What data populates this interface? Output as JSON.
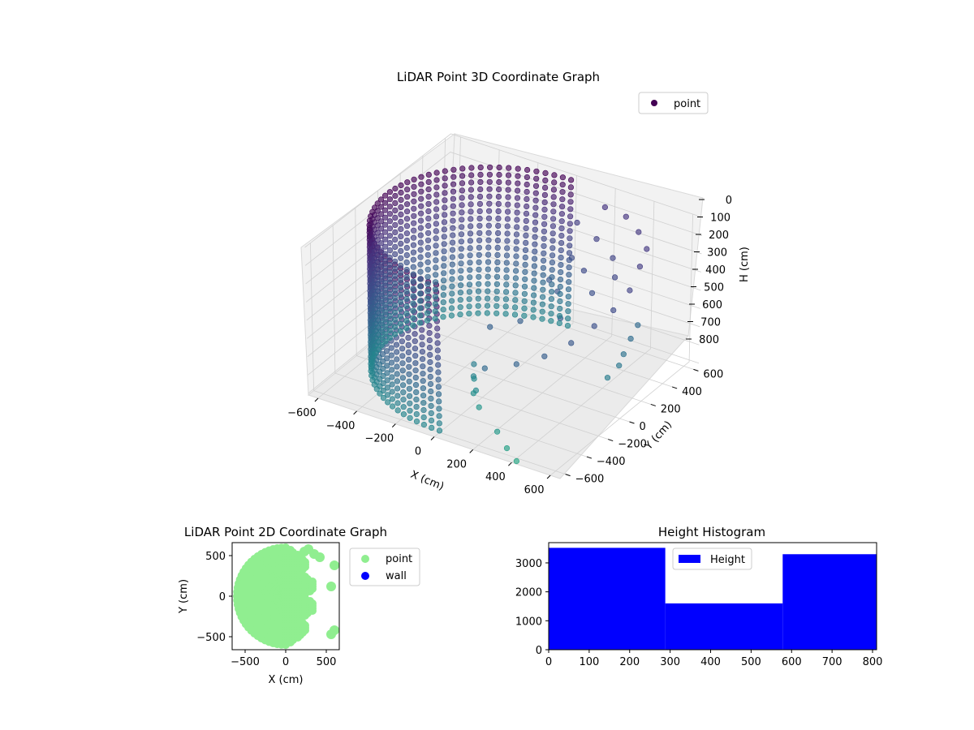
{
  "chart_data": [
    {
      "type": "scatter",
      "projection": "3d",
      "title": "LiDAR Point 3D Coordinate Graph",
      "xlabel": "X (cm)",
      "ylabel": "Y (cm)",
      "zlabel": "H (cm)",
      "xticks": [
        "−600",
        "−400",
        "−200",
        "0",
        "200",
        "400",
        "600"
      ],
      "yticks": [
        "−600",
        "−400",
        "−200",
        "0",
        "200",
        "400",
        "600"
      ],
      "zticks": [
        "0",
        "100",
        "200",
        "300",
        "400",
        "500",
        "600",
        "700",
        "800"
      ],
      "xlim": [
        -650,
        650
      ],
      "ylim": [
        -650,
        650
      ],
      "zlim": [
        0,
        810
      ],
      "z_inverted": true,
      "colormap": "viridis",
      "legend": {
        "label": "point",
        "location": "top-right",
        "marker_color": "#440154"
      },
      "series": [
        {
          "name": "point",
          "description_shape": "half cylinder wall of radius ~600 cm on the negative-X side, columns of points from H 0 to ~800, plus sparse scattered points on the positive-X side",
          "wall_radius": 600,
          "wall_angle_range_deg": [
            90,
            270
          ],
          "height_range": [
            0,
            800
          ],
          "sparse_points": [
            [
              200,
              560,
              60
            ],
            [
              320,
              540,
              60
            ],
            [
              420,
              480,
              80
            ],
            [
              520,
              380,
              90
            ],
            [
              560,
              250,
              110
            ],
            [
              600,
              90,
              150
            ],
            [
              590,
              -40,
              200
            ],
            [
              560,
              -160,
              240
            ],
            [
              520,
              -300,
              280
            ],
            [
              450,
              -420,
              320
            ],
            [
              350,
              -500,
              360
            ],
            [
              220,
              -560,
              400
            ],
            [
              120,
              450,
              120
            ],
            [
              250,
              400,
              140
            ],
            [
              380,
              320,
              160
            ],
            [
              460,
              200,
              180
            ],
            [
              300,
              200,
              200
            ],
            [
              180,
              300,
              220
            ],
            [
              400,
              100,
              240
            ],
            [
              250,
              50,
              260
            ],
            [
              150,
              150,
              280
            ],
            [
              350,
              -100,
              300
            ],
            [
              200,
              -200,
              320
            ],
            [
              100,
              -300,
              340
            ],
            [
              60,
              -380,
              520
            ],
            [
              80,
              -420,
              560
            ],
            [
              120,
              -470,
              600
            ],
            [
              60,
              -380,
              600
            ],
            [
              90,
              -440,
              640
            ],
            [
              140,
              -480,
              680
            ],
            [
              580,
              200,
              400
            ],
            [
              600,
              100,
              420
            ],
            [
              620,
              0,
              450
            ],
            [
              630,
              -60,
              480
            ],
            [
              610,
              -130,
              520
            ],
            [
              300,
              -600,
              700
            ],
            [
              360,
              -620,
              760
            ],
            [
              420,
              -640,
              800
            ]
          ]
        }
      ]
    },
    {
      "type": "scatter",
      "title": "LiDAR Point 2D Coordinate Graph",
      "xlabel": "X (cm)",
      "ylabel": "Y (cm)",
      "xticks": [
        "−500",
        "0",
        "500"
      ],
      "yticks": [
        "500",
        "0",
        "−500"
      ],
      "xlim": [
        -660,
        660
      ],
      "ylim": [
        -660,
        660
      ],
      "legend": {
        "location": "outside-right",
        "entries": [
          {
            "label": "point",
            "color": "#90ee90"
          },
          {
            "label": "wall",
            "color": "#0000ff"
          }
        ]
      },
      "series": [
        {
          "name": "point",
          "color": "#90ee90",
          "shape": "filled half-disc of radius ~600 on the negative-X side with ragged right edge"
        },
        {
          "name": "wall",
          "color": "#0000ff",
          "points": []
        }
      ]
    },
    {
      "type": "bar",
      "title": "Height Histogram",
      "xlabel": "",
      "ylabel": "",
      "xticks": [
        "0",
        "100",
        "200",
        "300",
        "400",
        "500",
        "600",
        "700",
        "800"
      ],
      "yticks": [
        "0",
        "1000",
        "2000",
        "3000"
      ],
      "xlim": [
        0,
        810
      ],
      "ylim": [
        0,
        3700
      ],
      "color": "#0000ff",
      "legend": {
        "label": "Height",
        "location": "upper-center"
      },
      "bins": [
        {
          "start": 0,
          "end": 288,
          "count": 3520
        },
        {
          "start": 288,
          "end": 578,
          "count": 1600
        },
        {
          "start": 578,
          "end": 810,
          "count": 3300
        }
      ]
    }
  ]
}
